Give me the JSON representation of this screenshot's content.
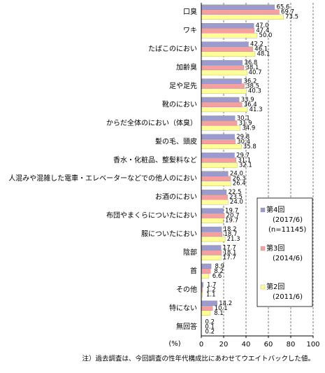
{
  "chart_data": {
    "type": "bar",
    "orientation": "horizontal",
    "categories": [
      "口臭",
      "ワキ",
      "たばこのにおい",
      "加齢臭",
      "足や足先",
      "靴のにおい",
      "からだ全体のにおい（体臭）",
      "髪の毛、頭皮",
      "香水・化粧品、整髪料など",
      "人混みや混雑した電車・エレベーターなどでの他人のにおい",
      "お酒のにおい",
      "布団やまくらについたにおい",
      "服についたにおい",
      "陰部",
      "首",
      "その他",
      "特にない",
      "無回答"
    ],
    "series": [
      {
        "name": "第4回",
        "period": "(2017/6)",
        "sample": "(n=11145)",
        "color": "#9b9bd0",
        "values": [
          65.6,
          47.0,
          42.2,
          36.8,
          36.2,
          33.9,
          30.1,
          29.8,
          29.7,
          24.0,
          22.5,
          19.7,
          18.2,
          17.7,
          8.9,
          1.7,
          14.2,
          0.2
        ],
        "value_labels": [
          "65.6",
          "47.0",
          "42.2",
          "36.8",
          "36.2",
          "33.9",
          "30.1",
          "29.8",
          "29.7",
          "24.0",
          "22.5",
          "19.7",
          "18.2",
          "17.7",
          "8.9",
          "1.7",
          "14.2",
          "0.2"
        ]
      },
      {
        "name": "第3回",
        "period": "(2014/6)",
        "color": "#f4a0a0",
        "values": [
          69.7,
          47.4,
          46.1,
          38.1,
          38.5,
          36.4,
          31.9,
          30.4,
          31.1,
          26.3,
          23.5,
          20.7,
          18.7,
          18.1,
          8.2,
          1.2,
          10.1,
          0.1
        ],
        "value_labels": [
          "69.7",
          "47.4",
          "46.1",
          "38.1",
          "38.5",
          "36.4",
          "31.9",
          "30.4",
          "31.1",
          "26.3",
          "23.5",
          "20.7",
          "18.7",
          "18.1",
          "8.2",
          "1.2",
          "10.1",
          "0.1"
        ]
      },
      {
        "name": "第2回",
        "period": "(2011/6)",
        "color": "#ffff99",
        "values": [
          73.5,
          50.0,
          48.1,
          40.7,
          40.3,
          41.3,
          34.9,
          35.8,
          32.1,
          26.4,
          24.0,
          19.7,
          21.3,
          17.7,
          6.6,
          1.1,
          8.1,
          0.2
        ],
        "value_labels": [
          "73.5",
          "50.0",
          "48.1",
          "40.7",
          "40.3",
          "41.3",
          "34.9",
          "35.8",
          "32.1",
          "26.4",
          "24.0",
          "19.7",
          "21.3",
          "17.7",
          "6.6",
          "1.1",
          "8.1",
          "0.2"
        ]
      }
    ],
    "xlim": [
      0,
      100
    ],
    "xticks": [
      0,
      20,
      40,
      60,
      80,
      100
    ],
    "grid": true,
    "x_unit": "(%)",
    "note": "注）過去調査は、今回調査の性年代構成比にあわせてウエイトバックした値。"
  }
}
